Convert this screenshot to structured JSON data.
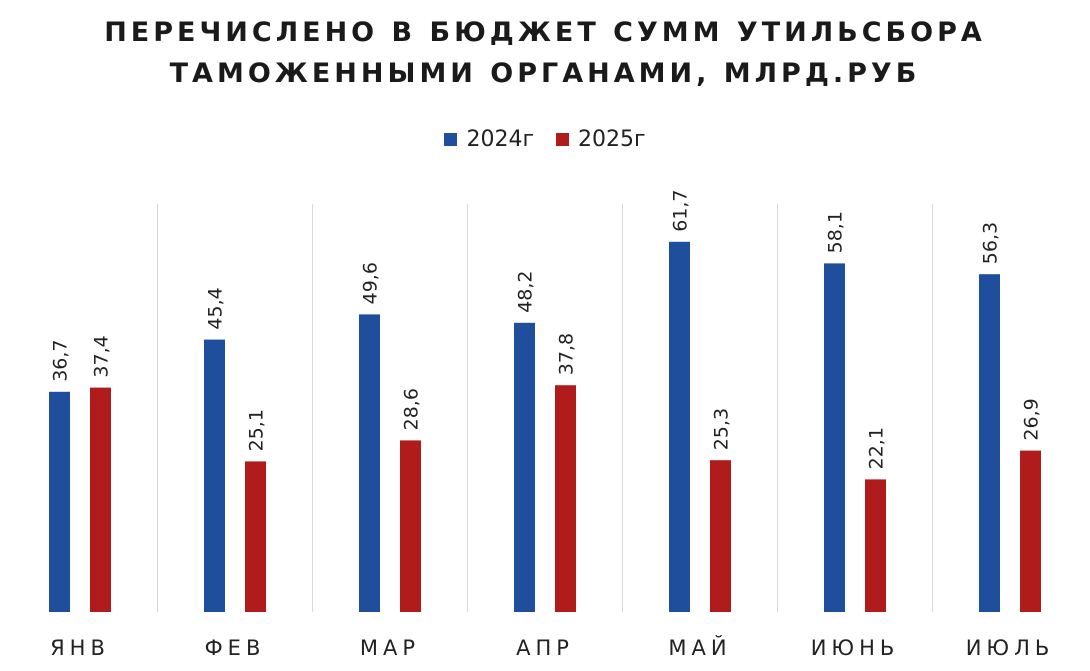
{
  "chart_data": {
    "type": "bar",
    "title": [
      "ПЕРЕЧИСЛЕНО В БЮДЖЕТ СУММ УТИЛЬСБОРА",
      "ТАМОЖЕННЫМИ ОРГАНАМИ, МЛРД.РУБ"
    ],
    "categories": [
      "ЯНВ",
      "ФЕВ",
      "МАР",
      "АПР",
      "МАЙ",
      "ИЮНЬ",
      "ИЮЛЬ"
    ],
    "series": [
      {
        "name": "2024г",
        "color": "#1f4e9c",
        "values": [
          36.7,
          45.4,
          49.6,
          48.2,
          61.7,
          58.1,
          56.3
        ],
        "labels": [
          "36,7",
          "45,4",
          "49,6",
          "48,2",
          "61,7",
          "58,1",
          "56,3"
        ]
      },
      {
        "name": "2025г",
        "color": "#b01c1c",
        "values": [
          37.4,
          25.1,
          28.6,
          37.8,
          25.3,
          22.1,
          26.9
        ],
        "labels": [
          "37,4",
          "25,1",
          "28,6",
          "37,8",
          "25,3",
          "22,1",
          "26,9"
        ]
      }
    ],
    "ylim": [
      0,
      70
    ],
    "grid": "vertical separators",
    "legend_position": "top-center"
  }
}
